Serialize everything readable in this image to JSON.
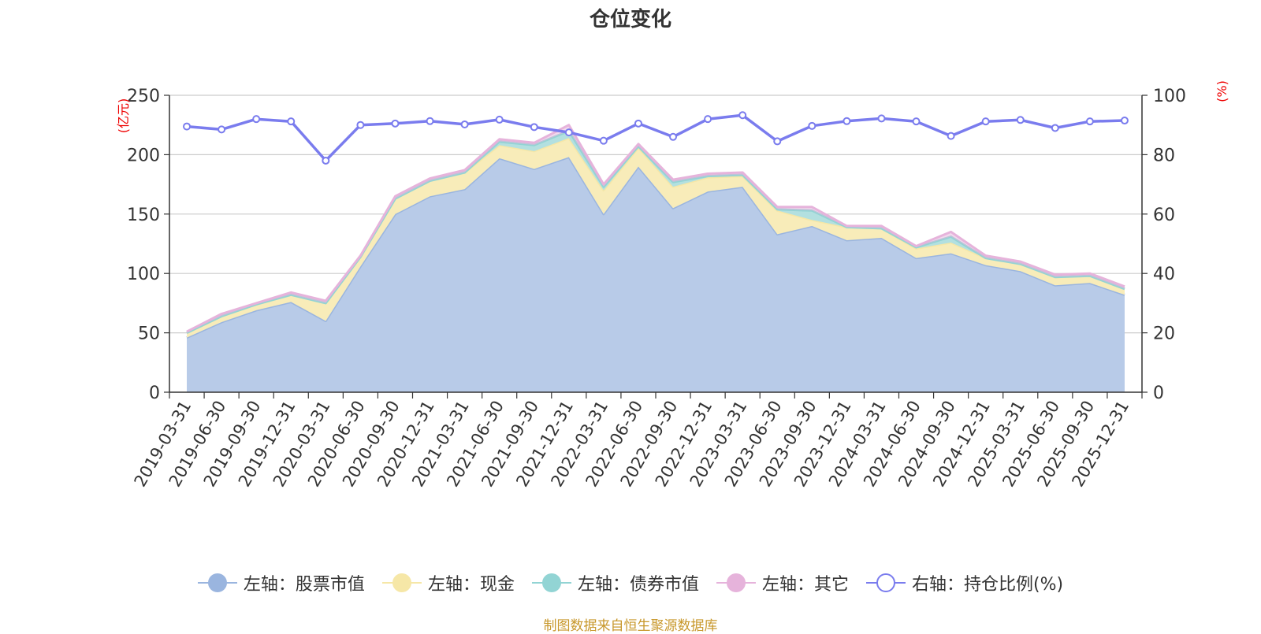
{
  "title": "仓位变化",
  "source_note": "制图数据来自恒生聚源数据库",
  "colors": {
    "stock": "#9ab5df",
    "stock_fill": "#b8cbe8",
    "cash": "#f6e7a7",
    "cash_fill": "#f8ecb9",
    "bond": "#92d4d4",
    "bond_fill": "#b3e0e0",
    "other": "#e6b3db",
    "ratio": "#7a7cee",
    "axis_unit": "#ee0000",
    "grid": "#cccccc",
    "axis": "#333333"
  },
  "legend": [
    {
      "key": "stock",
      "label": "左轴：股票市值",
      "marker": "filled"
    },
    {
      "key": "cash",
      "label": "左轴：现金",
      "marker": "filled"
    },
    {
      "key": "bond",
      "label": "左轴：债券市值",
      "marker": "filled"
    },
    {
      "key": "other",
      "label": "左轴：其它",
      "marker": "filled"
    },
    {
      "key": "ratio",
      "label": "右轴：持仓比例(%)",
      "marker": "hollow"
    }
  ],
  "chart_data": {
    "type": "area",
    "title": "仓位变化",
    "left_axis": {
      "unit_label": "(亿元)",
      "min": 0,
      "max": 250,
      "ticks": [
        0,
        50,
        100,
        150,
        200,
        250
      ]
    },
    "right_axis": {
      "unit_label": "(%)",
      "min": 0,
      "max": 100,
      "ticks": [
        0,
        20,
        40,
        60,
        80,
        100
      ]
    },
    "grid": true,
    "legend_position": "bottom",
    "categories": [
      "2019-03-31",
      "2019-06-30",
      "2019-09-30",
      "2019-12-31",
      "2020-03-31",
      "2020-06-30",
      "2020-09-30",
      "2020-12-31",
      "2021-03-31",
      "2021-06-30",
      "2021-09-30",
      "2021-12-31",
      "2022-03-31",
      "2022-06-30",
      "2022-09-30",
      "2022-12-31",
      "2023-03-31",
      "2023-06-30",
      "2023-09-30",
      "2023-12-31",
      "2024-03-31",
      "2024-06-30",
      "2024-09-30",
      "2024-12-31",
      "2025-03-31",
      "2025-06-30",
      "2025-09-30",
      "2025-12-31"
    ],
    "series": [
      {
        "name": "左轴：股票市值",
        "axis": "left",
        "stack": true,
        "values": [
          46,
          59,
          69,
          76,
          60,
          106,
          150,
          165,
          171,
          197,
          188,
          198,
          150,
          190,
          155,
          169,
          173,
          133,
          140,
          128,
          130,
          113,
          117,
          107,
          102,
          90,
          92,
          82
        ]
      },
      {
        "name": "左轴：现金",
        "axis": "left",
        "stack": true,
        "values": [
          4,
          5,
          5,
          6,
          15,
          8,
          13,
          13,
          14,
          11,
          15,
          16,
          20,
          16,
          18,
          12,
          9,
          20,
          5,
          11,
          8,
          8,
          9,
          6,
          6,
          7,
          6,
          5
        ]
      },
      {
        "name": "左轴：债券市值",
        "axis": "left",
        "stack": true,
        "values": [
          0,
          0,
          0,
          0,
          0,
          0,
          0,
          0,
          0,
          3,
          5,
          6,
          3,
          1,
          4,
          1,
          1,
          1,
          8,
          0,
          0,
          1,
          5,
          0,
          0,
          0,
          0,
          0
        ]
      },
      {
        "name": "左轴：其它",
        "axis": "left",
        "stack": true,
        "values": [
          1,
          2,
          1,
          2,
          2,
          1,
          2,
          2,
          2,
          2,
          2,
          5,
          2,
          2,
          2,
          2,
          2,
          2,
          3,
          1,
          2,
          1,
          4,
          2,
          2,
          2,
          2,
          2
        ]
      },
      {
        "name": "右轴：持仓比例(%)",
        "axis": "right",
        "type": "line",
        "values": [
          89.5,
          88.5,
          92,
          91.2,
          78,
          90,
          90.5,
          91.3,
          90.2,
          91.8,
          89.3,
          87.5,
          84.7,
          90.5,
          86,
          92,
          93.3,
          84.5,
          89.7,
          91.3,
          92.2,
          91.2,
          86.3,
          91.2,
          91.7,
          89,
          91.2,
          91.5
        ]
      }
    ]
  }
}
